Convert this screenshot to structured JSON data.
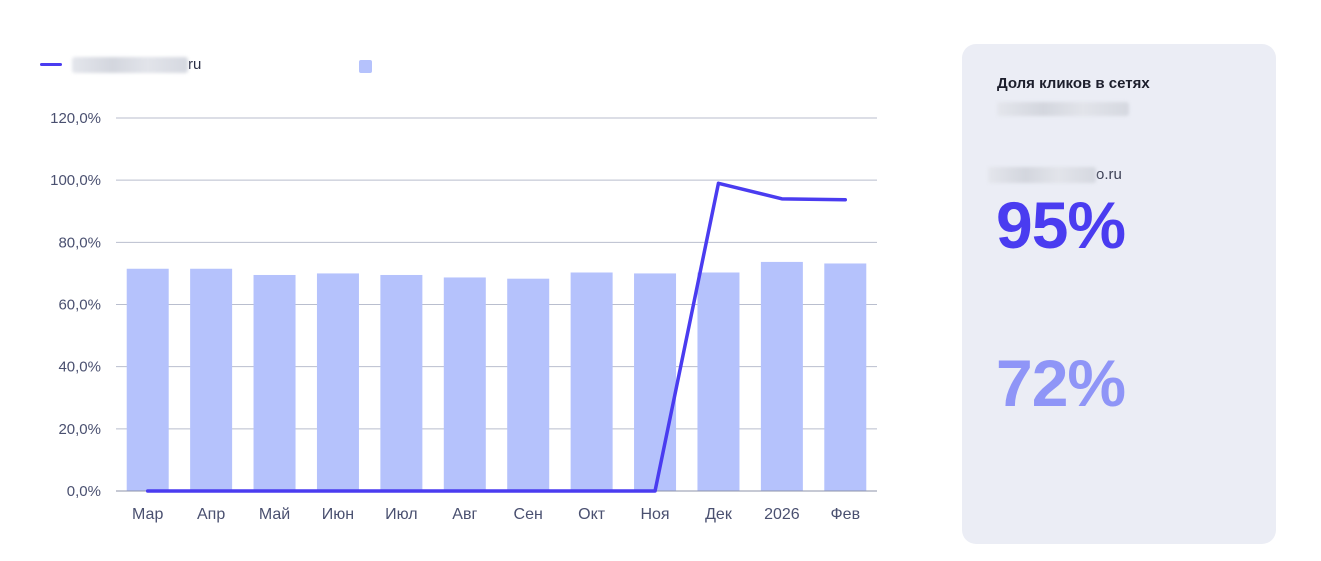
{
  "legend": {
    "line_label": "ru",
    "line_label_redacted_prefix": true,
    "bar_label": ""
  },
  "colors": {
    "line": "#4a3cf0",
    "bar": "#b5c2fc",
    "axis_text": "#4a5070",
    "grid": "#b9bece",
    "panel_bg": "#ebedf5",
    "value1": "#4a3cf0",
    "value2": "#8f95f7"
  },
  "panel": {
    "title": "Доля кликов в сетях",
    "site_suffix": "o.ru",
    "value1": "95%",
    "value2": "72%"
  },
  "chart_data": {
    "type": "bar",
    "categories": [
      "Мар",
      "Апр",
      "Май",
      "Июн",
      "Июл",
      "Авг",
      "Сен",
      "Окт",
      "Ноя",
      "Дек",
      "2026",
      "Фев"
    ],
    "y_ticks": [
      "0,0%",
      "20,0%",
      "40,0%",
      "60,0%",
      "80,0%",
      "100,0%",
      "120,0%"
    ],
    "ylim": [
      0,
      120
    ],
    "grid": true,
    "legend_position": "top-left",
    "series": [
      {
        "type": "bar",
        "values": [
          71.5,
          71.5,
          69.5,
          70.0,
          69.5,
          68.7,
          68.3,
          70.3,
          70.0,
          70.3,
          73.7,
          73.2
        ]
      },
      {
        "name": "ru",
        "type": "line",
        "values": [
          0,
          0,
          0,
          0,
          0,
          0,
          0,
          0,
          0,
          99,
          94,
          93.7
        ]
      }
    ]
  }
}
